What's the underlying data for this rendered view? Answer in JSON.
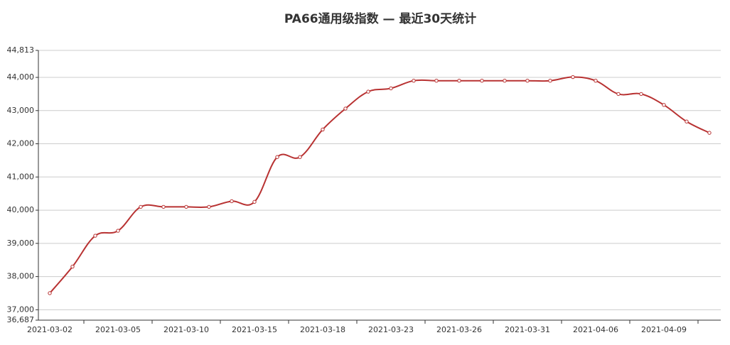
{
  "chart_data": {
    "type": "line",
    "title": "PA66通用级指数  —  最近30天统计",
    "categories": [
      "2021-03-02",
      null,
      null,
      "2021-03-05",
      null,
      null,
      "2021-03-10",
      null,
      null,
      "2021-03-15",
      null,
      null,
      "2021-03-18",
      null,
      null,
      "2021-03-23",
      null,
      null,
      "2021-03-26",
      null,
      null,
      "2021-03-31",
      null,
      null,
      "2021-04-06",
      null,
      null,
      "2021-04-09",
      null,
      null
    ],
    "series": [
      {
        "name": "PA66通用级指数",
        "color": "#b83232",
        "values": [
          37500,
          38300,
          39230,
          39380,
          40100,
          40100,
          40100,
          40100,
          40270,
          40250,
          41600,
          41600,
          42430,
          43060,
          43570,
          43670,
          43900,
          43900,
          43900,
          43900,
          43900,
          43900,
          43900,
          44010,
          43900,
          43500,
          43500,
          43170,
          42670,
          42330
        ]
      }
    ],
    "ylim": [
      36687,
      44813
    ],
    "yticks": [
      {
        "value": 36687,
        "label": "36,687"
      },
      {
        "value": 37000,
        "label": "37,000"
      },
      {
        "value": 38000,
        "label": "38,000"
      },
      {
        "value": 39000,
        "label": "39,000"
      },
      {
        "value": 40000,
        "label": "40,000"
      },
      {
        "value": 41000,
        "label": "41,000"
      },
      {
        "value": 42000,
        "label": "42,000"
      },
      {
        "value": 43000,
        "label": "43,000"
      },
      {
        "value": 44000,
        "label": "44,000"
      },
      {
        "value": 44813,
        "label": "44,813"
      }
    ],
    "grid": true
  }
}
